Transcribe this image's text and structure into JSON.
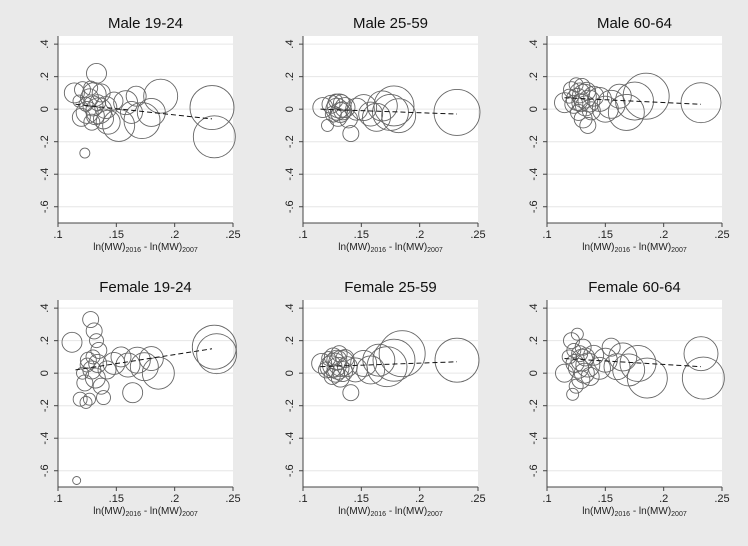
{
  "figure": {
    "background": "#eaeaea",
    "panel_background": "#ffffff",
    "marker_color": "#666666",
    "fit_color": "#111111",
    "x_axis_label": {
      "p1": "ln(MW)",
      "s1": "2016",
      "p2": " - ln(MW)",
      "s2": "2007"
    }
  },
  "chart_data": [
    {
      "type": "scatter",
      "title": "Male 19-24",
      "xlim": [
        0.1,
        0.25
      ],
      "ylim": [
        -0.7,
        0.45
      ],
      "xticks": [
        0.1,
        0.15,
        0.2,
        0.25
      ],
      "xtick_labels": [
        ".1",
        ".15",
        ".2",
        ".25"
      ],
      "yticks": [
        0.4,
        0.2,
        0,
        -0.2,
        -0.4,
        -0.6
      ],
      "ytick_labels": [
        ".4",
        ".2",
        "0",
        "-.2",
        "-.4",
        "-.6"
      ],
      "grid": true,
      "fit_line": {
        "x": [
          0.115,
          0.232
        ],
        "y": [
          0.03,
          -0.06
        ]
      },
      "points": [
        {
          "x": 0.114,
          "y": 0.1,
          "r": 10
        },
        {
          "x": 0.118,
          "y": 0.05,
          "r": 6
        },
        {
          "x": 0.12,
          "y": -0.05,
          "r": 9
        },
        {
          "x": 0.121,
          "y": 0.12,
          "r": 8
        },
        {
          "x": 0.123,
          "y": -0.27,
          "r": 5
        },
        {
          "x": 0.124,
          "y": 0.03,
          "r": 7
        },
        {
          "x": 0.125,
          "y": -0.02,
          "r": 11
        },
        {
          "x": 0.127,
          "y": 0.07,
          "r": 9
        },
        {
          "x": 0.128,
          "y": 0.13,
          "r": 7
        },
        {
          "x": 0.129,
          "y": -0.08,
          "r": 8
        },
        {
          "x": 0.13,
          "y": 0.02,
          "r": 10
        },
        {
          "x": 0.131,
          "y": 0.09,
          "r": 12
        },
        {
          "x": 0.132,
          "y": -0.04,
          "r": 9
        },
        {
          "x": 0.133,
          "y": 0.22,
          "r": 10
        },
        {
          "x": 0.134,
          "y": 0.04,
          "r": 8
        },
        {
          "x": 0.135,
          "y": -0.01,
          "r": 13
        },
        {
          "x": 0.137,
          "y": 0.1,
          "r": 9
        },
        {
          "x": 0.139,
          "y": -0.06,
          "r": 10
        },
        {
          "x": 0.141,
          "y": 0.01,
          "r": 11
        },
        {
          "x": 0.143,
          "y": -0.08,
          "r": 12
        },
        {
          "x": 0.148,
          "y": 0.05,
          "r": 9
        },
        {
          "x": 0.152,
          "y": -0.1,
          "r": 16
        },
        {
          "x": 0.158,
          "y": 0.04,
          "r": 12
        },
        {
          "x": 0.163,
          "y": -0.02,
          "r": 11
        },
        {
          "x": 0.167,
          "y": 0.08,
          "r": 10
        },
        {
          "x": 0.172,
          "y": -0.07,
          "r": 18
        },
        {
          "x": 0.18,
          "y": -0.02,
          "r": 14
        },
        {
          "x": 0.188,
          "y": 0.08,
          "r": 17
        },
        {
          "x": 0.232,
          "y": 0.01,
          "r": 22
        },
        {
          "x": 0.234,
          "y": -0.17,
          "r": 21
        }
      ]
    },
    {
      "type": "scatter",
      "title": "Male 25-59",
      "xlim": [
        0.1,
        0.25
      ],
      "ylim": [
        -0.7,
        0.45
      ],
      "xticks": [
        0.1,
        0.15,
        0.2,
        0.25
      ],
      "xtick_labels": [
        ".1",
        ".15",
        ".2",
        ".25"
      ],
      "yticks": [
        0.4,
        0.2,
        0,
        -0.2,
        -0.4,
        -0.6
      ],
      "ytick_labels": [
        ".4",
        ".2",
        "0",
        "-.2",
        "-.4",
        "-.6"
      ],
      "grid": true,
      "fit_line": {
        "x": [
          0.115,
          0.232
        ],
        "y": [
          0.0,
          -0.03
        ]
      },
      "points": [
        {
          "x": 0.117,
          "y": 0.01,
          "r": 10
        },
        {
          "x": 0.121,
          "y": -0.1,
          "r": 6
        },
        {
          "x": 0.124,
          "y": 0.03,
          "r": 9
        },
        {
          "x": 0.126,
          "y": -0.03,
          "r": 8
        },
        {
          "x": 0.128,
          "y": 0.05,
          "r": 7
        },
        {
          "x": 0.129,
          "y": 0.0,
          "r": 11
        },
        {
          "x": 0.13,
          "y": -0.05,
          "r": 9
        },
        {
          "x": 0.131,
          "y": 0.02,
          "r": 12
        },
        {
          "x": 0.132,
          "y": -0.02,
          "r": 10
        },
        {
          "x": 0.133,
          "y": 0.04,
          "r": 8
        },
        {
          "x": 0.134,
          "y": -0.01,
          "r": 9
        },
        {
          "x": 0.136,
          "y": 0.01,
          "r": 10
        },
        {
          "x": 0.139,
          "y": -0.06,
          "r": 9
        },
        {
          "x": 0.141,
          "y": -0.15,
          "r": 8
        },
        {
          "x": 0.146,
          "y": 0.0,
          "r": 11
        },
        {
          "x": 0.152,
          "y": 0.01,
          "r": 13
        },
        {
          "x": 0.158,
          "y": -0.03,
          "r": 12
        },
        {
          "x": 0.163,
          "y": -0.05,
          "r": 14
        },
        {
          "x": 0.168,
          "y": 0.02,
          "r": 15
        },
        {
          "x": 0.175,
          "y": -0.02,
          "r": 18
        },
        {
          "x": 0.178,
          "y": 0.02,
          "r": 20
        },
        {
          "x": 0.182,
          "y": -0.04,
          "r": 17
        },
        {
          "x": 0.232,
          "y": -0.02,
          "r": 23
        }
      ]
    },
    {
      "type": "scatter",
      "title": "Male 60-64",
      "xlim": [
        0.1,
        0.25
      ],
      "ylim": [
        -0.7,
        0.45
      ],
      "xticks": [
        0.1,
        0.15,
        0.2,
        0.25
      ],
      "xtick_labels": [
        ".1",
        ".15",
        ".2",
        ".25"
      ],
      "yticks": [
        0.4,
        0.2,
        0,
        -0.2,
        -0.4,
        -0.6
      ],
      "ytick_labels": [
        ".4",
        ".2",
        "0",
        "-.2",
        "-.4",
        "-.6"
      ],
      "grid": true,
      "fit_line": {
        "x": [
          0.115,
          0.232
        ],
        "y": [
          0.07,
          0.03
        ]
      },
      "points": [
        {
          "x": 0.115,
          "y": 0.04,
          "r": 10
        },
        {
          "x": 0.119,
          "y": 0.08,
          "r": 7
        },
        {
          "x": 0.121,
          "y": 0.12,
          "r": 8
        },
        {
          "x": 0.123,
          "y": 0.03,
          "r": 9
        },
        {
          "x": 0.125,
          "y": 0.15,
          "r": 7
        },
        {
          "x": 0.126,
          "y": 0.06,
          "r": 11
        },
        {
          "x": 0.127,
          "y": -0.02,
          "r": 8
        },
        {
          "x": 0.128,
          "y": 0.1,
          "r": 10
        },
        {
          "x": 0.129,
          "y": 0.04,
          "r": 9
        },
        {
          "x": 0.13,
          "y": 0.14,
          "r": 8
        },
        {
          "x": 0.131,
          "y": -0.06,
          "r": 9
        },
        {
          "x": 0.132,
          "y": 0.08,
          "r": 12
        },
        {
          "x": 0.133,
          "y": 0.02,
          "r": 10
        },
        {
          "x": 0.134,
          "y": 0.11,
          "r": 9
        },
        {
          "x": 0.135,
          "y": -0.1,
          "r": 8
        },
        {
          "x": 0.136,
          "y": 0.05,
          "r": 11
        },
        {
          "x": 0.138,
          "y": -0.01,
          "r": 9
        },
        {
          "x": 0.14,
          "y": 0.08,
          "r": 10
        },
        {
          "x": 0.145,
          "y": 0.06,
          "r": 12
        },
        {
          "x": 0.15,
          "y": 0.0,
          "r": 13
        },
        {
          "x": 0.155,
          "y": 0.03,
          "r": 14
        },
        {
          "x": 0.162,
          "y": 0.08,
          "r": 12
        },
        {
          "x": 0.168,
          "y": -0.02,
          "r": 18
        },
        {
          "x": 0.175,
          "y": 0.05,
          "r": 19
        },
        {
          "x": 0.185,
          "y": 0.08,
          "r": 23
        },
        {
          "x": 0.232,
          "y": 0.04,
          "r": 20
        }
      ]
    },
    {
      "type": "scatter",
      "title": "Female 19-24",
      "xlim": [
        0.1,
        0.25
      ],
      "ylim": [
        -0.7,
        0.45
      ],
      "xticks": [
        0.1,
        0.15,
        0.2,
        0.25
      ],
      "xtick_labels": [
        ".1",
        ".15",
        ".2",
        ".25"
      ],
      "yticks": [
        0.4,
        0.2,
        0,
        -0.2,
        -0.4,
        -0.6
      ],
      "ytick_labels": [
        ".4",
        ".2",
        "0",
        "-.2",
        "-.4",
        "-.6"
      ],
      "grid": true,
      "fit_line": {
        "x": [
          0.115,
          0.232
        ],
        "y": [
          0.02,
          0.15
        ]
      },
      "points": [
        {
          "x": 0.112,
          "y": 0.19,
          "r": 10
        },
        {
          "x": 0.116,
          "y": -0.66,
          "r": 4
        },
        {
          "x": 0.119,
          "y": -0.16,
          "r": 7
        },
        {
          "x": 0.121,
          "y": 0.0,
          "r": 6
        },
        {
          "x": 0.123,
          "y": -0.06,
          "r": 8
        },
        {
          "x": 0.124,
          "y": -0.18,
          "r": 6
        },
        {
          "x": 0.125,
          "y": 0.05,
          "r": 7
        },
        {
          "x": 0.126,
          "y": 0.08,
          "r": 8
        },
        {
          "x": 0.127,
          "y": -0.16,
          "r": 6
        },
        {
          "x": 0.128,
          "y": 0.33,
          "r": 8
        },
        {
          "x": 0.129,
          "y": 0.02,
          "r": 9
        },
        {
          "x": 0.13,
          "y": 0.1,
          "r": 7
        },
        {
          "x": 0.131,
          "y": 0.26,
          "r": 8
        },
        {
          "x": 0.132,
          "y": -0.03,
          "r": 10
        },
        {
          "x": 0.133,
          "y": 0.2,
          "r": 7
        },
        {
          "x": 0.134,
          "y": 0.06,
          "r": 9
        },
        {
          "x": 0.135,
          "y": 0.14,
          "r": 8
        },
        {
          "x": 0.137,
          "y": -0.08,
          "r": 8
        },
        {
          "x": 0.139,
          "y": -0.15,
          "r": 7
        },
        {
          "x": 0.142,
          "y": 0.02,
          "r": 9
        },
        {
          "x": 0.148,
          "y": 0.06,
          "r": 11
        },
        {
          "x": 0.154,
          "y": 0.1,
          "r": 10
        },
        {
          "x": 0.16,
          "y": 0.05,
          "r": 12
        },
        {
          "x": 0.164,
          "y": -0.12,
          "r": 10
        },
        {
          "x": 0.168,
          "y": 0.08,
          "r": 13
        },
        {
          "x": 0.174,
          "y": 0.04,
          "r": 14
        },
        {
          "x": 0.18,
          "y": 0.09,
          "r": 12
        },
        {
          "x": 0.186,
          "y": 0.0,
          "r": 16
        },
        {
          "x": 0.234,
          "y": 0.16,
          "r": 22
        },
        {
          "x": 0.236,
          "y": 0.12,
          "r": 20
        }
      ]
    },
    {
      "type": "scatter",
      "title": "Female 25-59",
      "xlim": [
        0.1,
        0.25
      ],
      "ylim": [
        -0.7,
        0.45
      ],
      "xticks": [
        0.1,
        0.15,
        0.2,
        0.25
      ],
      "xtick_labels": [
        ".1",
        ".15",
        ".2",
        ".25"
      ],
      "yticks": [
        0.4,
        0.2,
        0,
        -0.2,
        -0.4,
        -0.6
      ],
      "ytick_labels": [
        ".4",
        ".2",
        "0",
        "-.2",
        "-.4",
        "-.6"
      ],
      "grid": true,
      "fit_line": {
        "x": [
          0.115,
          0.232
        ],
        "y": [
          0.04,
          0.07
        ]
      },
      "points": [
        {
          "x": 0.116,
          "y": 0.06,
          "r": 10
        },
        {
          "x": 0.12,
          "y": 0.02,
          "r": 8
        },
        {
          "x": 0.122,
          "y": 0.09,
          "r": 7
        },
        {
          "x": 0.124,
          "y": 0.04,
          "r": 11
        },
        {
          "x": 0.125,
          "y": -0.02,
          "r": 8
        },
        {
          "x": 0.126,
          "y": 0.1,
          "r": 9
        },
        {
          "x": 0.127,
          "y": 0.05,
          "r": 12
        },
        {
          "x": 0.128,
          "y": 0.0,
          "r": 9
        },
        {
          "x": 0.129,
          "y": 0.08,
          "r": 10
        },
        {
          "x": 0.13,
          "y": 0.03,
          "r": 11
        },
        {
          "x": 0.131,
          "y": 0.12,
          "r": 8
        },
        {
          "x": 0.132,
          "y": -0.03,
          "r": 9
        },
        {
          "x": 0.133,
          "y": 0.06,
          "r": 13
        },
        {
          "x": 0.134,
          "y": 0.01,
          "r": 10
        },
        {
          "x": 0.136,
          "y": 0.09,
          "r": 9
        },
        {
          "x": 0.138,
          "y": 0.04,
          "r": 10
        },
        {
          "x": 0.141,
          "y": -0.12,
          "r": 8
        },
        {
          "x": 0.145,
          "y": 0.02,
          "r": 12
        },
        {
          "x": 0.152,
          "y": 0.06,
          "r": 13
        },
        {
          "x": 0.158,
          "y": 0.02,
          "r": 14
        },
        {
          "x": 0.165,
          "y": 0.08,
          "r": 16
        },
        {
          "x": 0.172,
          "y": 0.04,
          "r": 20
        },
        {
          "x": 0.178,
          "y": 0.08,
          "r": 21
        },
        {
          "x": 0.185,
          "y": 0.12,
          "r": 23
        },
        {
          "x": 0.232,
          "y": 0.08,
          "r": 22
        }
      ]
    },
    {
      "type": "scatter",
      "title": "Female 60-64",
      "xlim": [
        0.1,
        0.25
      ],
      "ylim": [
        -0.7,
        0.45
      ],
      "xticks": [
        0.1,
        0.15,
        0.2,
        0.25
      ],
      "xtick_labels": [
        ".1",
        ".15",
        ".2",
        ".25"
      ],
      "yticks": [
        0.4,
        0.2,
        0,
        -0.2,
        -0.4,
        -0.6
      ],
      "ytick_labels": [
        ".4",
        ".2",
        "0",
        "-.2",
        "-.4",
        "-.6"
      ],
      "grid": true,
      "fit_line": {
        "x": [
          0.115,
          0.232
        ],
        "y": [
          0.09,
          0.04
        ]
      },
      "points": [
        {
          "x": 0.115,
          "y": 0.0,
          "r": 9
        },
        {
          "x": 0.119,
          "y": 0.1,
          "r": 7
        },
        {
          "x": 0.121,
          "y": 0.2,
          "r": 8
        },
        {
          "x": 0.122,
          "y": -0.13,
          "r": 6
        },
        {
          "x": 0.123,
          "y": 0.14,
          "r": 7
        },
        {
          "x": 0.124,
          "y": 0.06,
          "r": 9
        },
        {
          "x": 0.125,
          "y": -0.08,
          "r": 7
        },
        {
          "x": 0.126,
          "y": 0.24,
          "r": 6
        },
        {
          "x": 0.127,
          "y": 0.03,
          "r": 10
        },
        {
          "x": 0.128,
          "y": 0.12,
          "r": 8
        },
        {
          "x": 0.129,
          "y": -0.04,
          "r": 9
        },
        {
          "x": 0.13,
          "y": 0.08,
          "r": 11
        },
        {
          "x": 0.131,
          "y": 0.16,
          "r": 8
        },
        {
          "x": 0.132,
          "y": 0.0,
          "r": 10
        },
        {
          "x": 0.133,
          "y": 0.1,
          "r": 9
        },
        {
          "x": 0.135,
          "y": 0.05,
          "r": 12
        },
        {
          "x": 0.137,
          "y": -0.02,
          "r": 9
        },
        {
          "x": 0.14,
          "y": 0.11,
          "r": 10
        },
        {
          "x": 0.145,
          "y": 0.03,
          "r": 11
        },
        {
          "x": 0.15,
          "y": 0.08,
          "r": 12
        },
        {
          "x": 0.155,
          "y": 0.16,
          "r": 9
        },
        {
          "x": 0.16,
          "y": 0.04,
          "r": 13
        },
        {
          "x": 0.165,
          "y": 0.1,
          "r": 14
        },
        {
          "x": 0.17,
          "y": 0.02,
          "r": 16
        },
        {
          "x": 0.178,
          "y": 0.06,
          "r": 18
        },
        {
          "x": 0.186,
          "y": -0.03,
          "r": 20
        },
        {
          "x": 0.232,
          "y": 0.12,
          "r": 17
        },
        {
          "x": 0.234,
          "y": -0.03,
          "r": 21
        }
      ]
    }
  ]
}
